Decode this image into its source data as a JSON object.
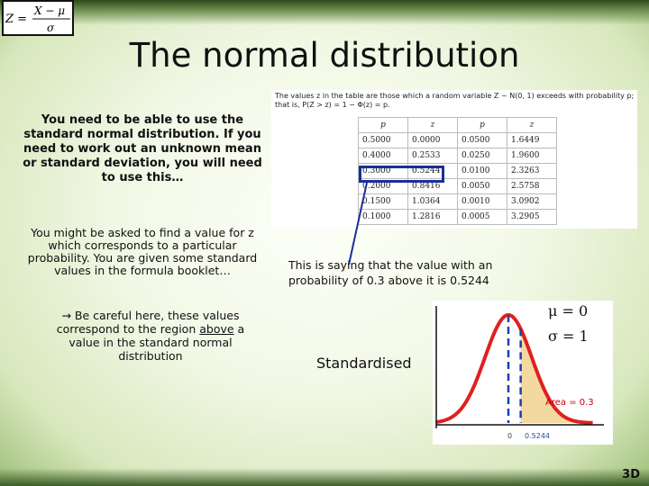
{
  "title": "The normal distribution",
  "formula": {
    "lhs": "Z =",
    "numerator": "X − μ",
    "denominator": "σ"
  },
  "left_text": {
    "p1": "You need to be able to use the standard normal distribution. If you need to work out an unknown mean or standard deviation, you will need to use this…",
    "p2": "You might be asked to find a value for z which corresponds to a particular probability. You are given some standard values in the formula booklet…",
    "p3_before": "→ Be careful here, these values correspond to the region ",
    "p3_underlined": "above",
    "p3_after": " a value in the standard normal distribution"
  },
  "table_panel": {
    "intro": "The values z in the table are those which a random variable Z ~ N(0, 1) exceeds with probability p; that is, P(Z > z) = 1 − Φ(z) = p.",
    "headers": [
      "p",
      "z",
      "p",
      "z"
    ],
    "rows": [
      [
        "0.5000",
        "0.0000",
        "0.0500",
        "1.6449"
      ],
      [
        "0.4000",
        "0.2533",
        "0.0250",
        "1.9600"
      ],
      [
        "0.3000",
        "0.5244",
        "0.0100",
        "2.3263"
      ],
      [
        "0.2000",
        "0.8416",
        "0.0050",
        "2.5758"
      ],
      [
        "0.1500",
        "1.0364",
        "0.0010",
        "3.0902"
      ],
      [
        "0.1000",
        "1.2816",
        "0.0005",
        "3.2905"
      ]
    ]
  },
  "caption": "This is saying that the value with an probability of 0.3 above it is 0.5244",
  "graph": {
    "mu": "μ = 0",
    "sigma": "σ = 1",
    "standardised": "Standardised",
    "area": "Area = 0.3",
    "tick_zero": "0",
    "tick_z": "0.5244",
    "curve_color": "#e02020",
    "shade_color": "#f3d9a0",
    "dash_color": "#1a3fb0"
  },
  "slide_number": "3D"
}
